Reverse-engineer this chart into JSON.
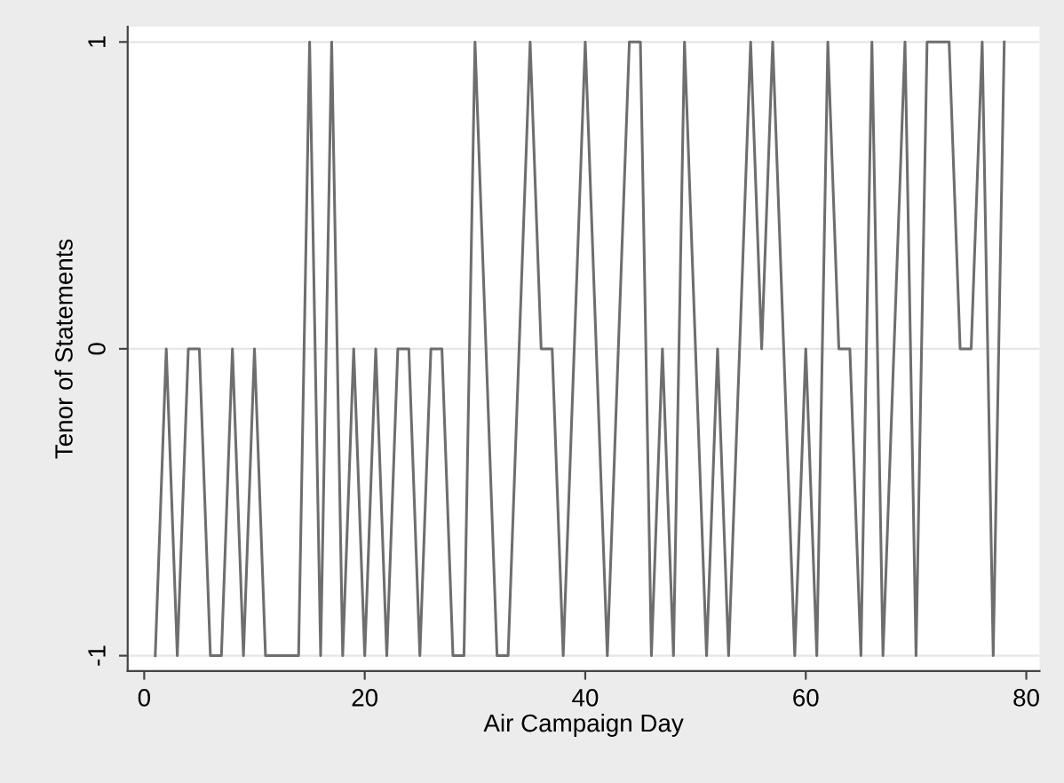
{
  "chart_data": {
    "type": "line",
    "xlabel": "Air Campaign Day",
    "ylabel": "Tenor of Statements",
    "x": [
      1,
      2,
      3,
      4,
      5,
      6,
      7,
      8,
      9,
      10,
      11,
      14,
      15,
      16,
      17,
      18,
      19,
      20,
      21,
      22,
      23,
      24,
      25,
      26,
      27,
      28,
      29,
      30,
      32,
      33,
      35,
      36,
      37,
      38,
      40,
      42,
      44,
      45,
      46,
      47,
      48,
      49,
      51,
      52,
      53,
      55,
      56,
      57,
      59,
      60,
      61,
      62,
      63,
      64,
      65,
      66,
      67,
      69,
      70,
      71,
      73,
      74,
      75,
      76,
      77,
      78
    ],
    "series": [
      {
        "color": "#6e6e6e",
        "values": [
          -1,
          0,
          -1,
          0,
          0,
          -1,
          -1,
          0,
          -1,
          0,
          -1,
          -1,
          1,
          -1,
          1,
          -1,
          0,
          -1,
          0,
          -1,
          0,
          0,
          -1,
          0,
          0,
          -1,
          -1,
          1,
          -1,
          -1,
          1,
          0,
          0,
          -1,
          1,
          -1,
          1,
          1,
          -1,
          0,
          -1,
          1,
          -1,
          0,
          -1,
          1,
          0,
          1,
          -1,
          0,
          -1,
          1,
          0,
          0,
          -1,
          1,
          -1,
          1,
          -1,
          1,
          1,
          0,
          0,
          1,
          -1,
          1
        ]
      }
    ],
    "xlim": [
      -1.5,
      81.2
    ],
    "xticks": [
      0,
      20,
      40,
      60,
      80
    ],
    "ylim": [
      -1.05,
      1.05
    ],
    "yticks": [
      -1,
      0,
      1
    ],
    "grid": "y",
    "legend": false,
    "marker": "none",
    "line_style": "solid"
  }
}
